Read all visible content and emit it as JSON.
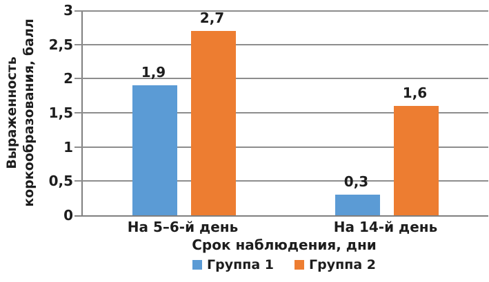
{
  "chart_data": {
    "type": "bar",
    "title": "",
    "categories": [
      "На 5–6-й день",
      "На 14-й день"
    ],
    "series": [
      {
        "name": "Группа 1",
        "color": "#5B9BD5",
        "values": [
          1.9,
          0.3
        ],
        "value_labels": [
          "1,9",
          "0,3"
        ]
      },
      {
        "name": "Группа 2",
        "color": "#ED7D31",
        "values": [
          2.7,
          1.6
        ],
        "value_labels": [
          "2,7",
          "1,6"
        ]
      }
    ],
    "xlabel": "Срок наблюдения, дни",
    "ylabel": "Выраженность коркообразования, балл",
    "ylabel_lines": [
      "Выраженность",
      "коркообразования, балл"
    ],
    "ylim": [
      0,
      3
    ],
    "ytick_step": 0.5,
    "ytick_labels": [
      "0",
      "0,5",
      "1",
      "1,5",
      "2",
      "2,5",
      "3"
    ],
    "grid": "horizontal",
    "legend_position": "bottom",
    "axis_color": "#7f7f7f",
    "gridline_color": "#8c8c8c",
    "text_color": "#1d1d1d"
  }
}
